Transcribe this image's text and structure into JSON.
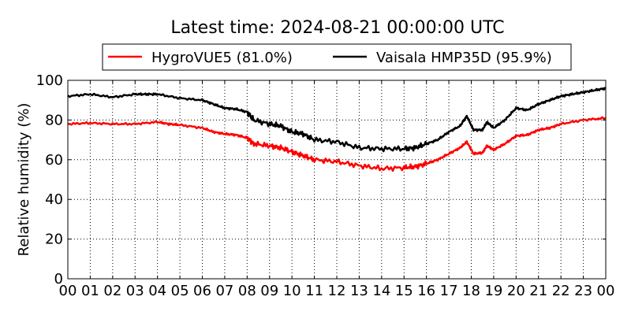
{
  "chart_data": {
    "type": "line",
    "title": "Latest time: 2024-08-21 00:00:00 UTC",
    "xlabel": "",
    "ylabel": "Relative humidity (%)",
    "xlim": [
      0,
      24
    ],
    "ylim": [
      0,
      100
    ],
    "grid": true,
    "legend_placement": "top-center, above plot",
    "x_tick_labels": [
      "00",
      "01",
      "02",
      "03",
      "04",
      "05",
      "06",
      "07",
      "08",
      "09",
      "10",
      "11",
      "12",
      "13",
      "14",
      "15",
      "16",
      "17",
      "18",
      "19",
      "20",
      "21",
      "22",
      "23",
      "00"
    ],
    "y_tick_labels": [
      "0",
      "20",
      "40",
      "60",
      "80",
      "100"
    ],
    "y_ticks": [
      0,
      20,
      40,
      60,
      80,
      100
    ],
    "series": [
      {
        "name": "HygroVUE5 (81.0%)",
        "color": "#ff0000",
        "x": [
          0,
          1,
          2,
          3,
          4,
          4.5,
          5,
          6,
          6.5,
          7,
          7.5,
          8,
          8.3,
          9,
          9.5,
          10,
          10.5,
          11,
          12,
          13,
          14,
          15,
          15.5,
          16,
          16.5,
          17,
          17.5,
          17.8,
          18.1,
          18.5,
          18.7,
          19,
          19.5,
          20,
          20.5,
          21,
          21.5,
          22,
          23,
          24
        ],
        "y": [
          78,
          78.5,
          78,
          78,
          79,
          78,
          77.5,
          76,
          74,
          73,
          72.5,
          71,
          68,
          67,
          66,
          64,
          62,
          60,
          59,
          57,
          55.5,
          56,
          56.5,
          58,
          60,
          63,
          66,
          69,
          63,
          63.5,
          67,
          65,
          68,
          72,
          72.5,
          75,
          76,
          78,
          80,
          81
        ]
      },
      {
        "name": "Vaisala HMP35D (95.9%)",
        "color": "#000000",
        "x": [
          0,
          1,
          2,
          3,
          3.5,
          4,
          5,
          6,
          6.5,
          7,
          7.5,
          8,
          8.3,
          9,
          9.5,
          10,
          10.5,
          11,
          12,
          13,
          14,
          15,
          15.5,
          16,
          16.5,
          17,
          17.5,
          17.8,
          18.1,
          18.5,
          18.7,
          19,
          19.5,
          20,
          20.5,
          21,
          21.5,
          22,
          22.5,
          23,
          23.5,
          24
        ],
        "y": [
          92,
          93,
          91.5,
          93,
          93,
          93,
          91,
          90,
          88,
          86,
          85.5,
          84,
          80,
          78,
          77,
          74,
          73,
          70,
          69,
          66,
          65.5,
          65.5,
          66,
          68,
          70,
          74,
          77,
          82,
          75,
          75,
          79,
          76,
          80,
          86,
          85,
          88,
          90,
          92,
          93,
          94,
          95,
          96
        ]
      }
    ]
  }
}
